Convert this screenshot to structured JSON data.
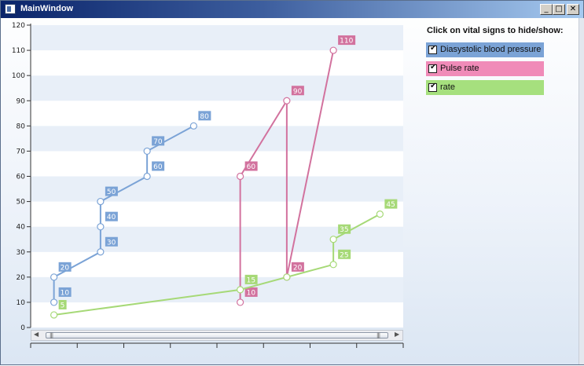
{
  "window": {
    "title": "MainWindow",
    "min_glyph": "_",
    "max_glyph": "□",
    "close_glyph": "✕"
  },
  "legend": {
    "title": "Click on vital signs to hide/show:",
    "items": [
      {
        "label": "Diasystolic blood pressure",
        "color": "#7ba3d6",
        "checked": true
      },
      {
        "label": "Pulse rate",
        "color": "#f08bb8",
        "checked": true
      },
      {
        "label": "rate",
        "color": "#a6e07e",
        "checked": true
      }
    ]
  },
  "chart_data": {
    "type": "line",
    "ylim": [
      0,
      120
    ],
    "yticks": [
      "0",
      "10",
      "20",
      "30",
      "40",
      "50",
      "60",
      "70",
      "80",
      "90",
      "100",
      "110",
      "120"
    ],
    "x_slots": 8,
    "grid": "alternating-bands",
    "series": [
      {
        "color": "#7ba3d6",
        "points": [
          [
            0.5,
            10
          ],
          [
            0.5,
            20
          ],
          [
            1.5,
            30
          ],
          [
            1.5,
            40
          ],
          [
            1.5,
            50
          ],
          [
            2.5,
            60
          ],
          [
            2.5,
            70
          ],
          [
            3.5,
            80
          ]
        ],
        "labels": [
          "10",
          "20",
          "30",
          "40",
          "50",
          "60",
          "70",
          "80"
        ]
      },
      {
        "color": "#d2729e",
        "points": [
          [
            4.5,
            10
          ],
          [
            4.5,
            60
          ],
          [
            5.5,
            90
          ],
          [
            5.5,
            20
          ],
          [
            6.5,
            110
          ]
        ],
        "labels": [
          "10",
          "60",
          "90",
          "20",
          "110"
        ]
      },
      {
        "color": "#a6d977",
        "points": [
          [
            0.5,
            5
          ],
          [
            4.5,
            15
          ],
          [
            5.5,
            20
          ],
          [
            6.5,
            25
          ],
          [
            6.5,
            35
          ],
          [
            7.5,
            45
          ]
        ],
        "labels": [
          "5",
          "15",
          "",
          "25",
          "35",
          "45"
        ]
      }
    ]
  },
  "scrollbar": {
    "left_arrow": "◀",
    "right_arrow": "▶",
    "grip_left": "|||",
    "grip_right": "|||"
  }
}
